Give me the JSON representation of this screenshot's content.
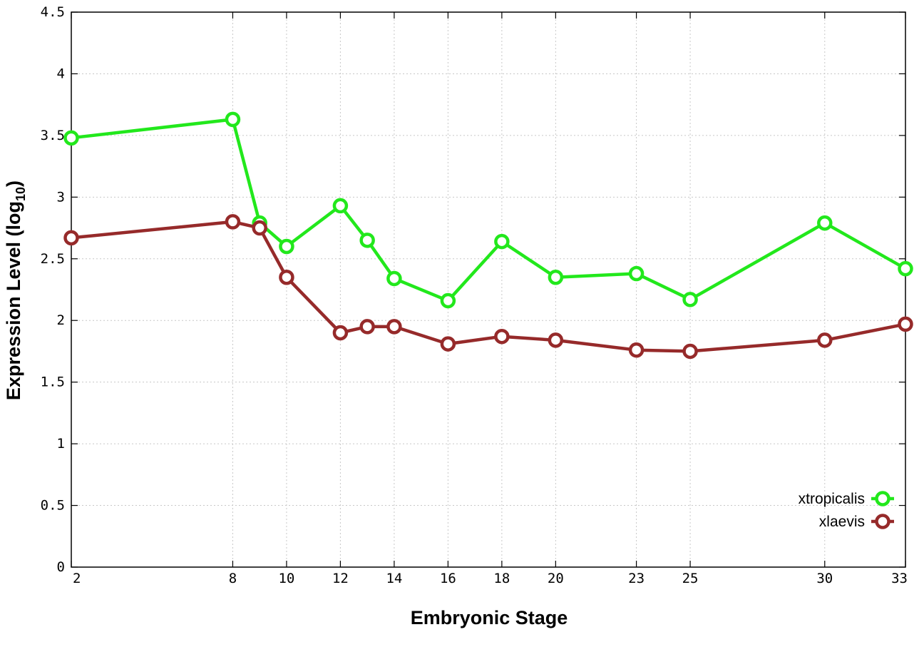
{
  "chart_data": {
    "type": "line",
    "xlabel": "Embryonic Stage",
    "ylabel": "Expression Level (log",
    "ylabel_sub": "10",
    "ylabel_close": ")",
    "x_ticks": [
      "2",
      "8",
      "10",
      "12",
      "14",
      "16",
      "18",
      "20",
      "23",
      "25",
      "30",
      "33"
    ],
    "y_ticks": [
      "0",
      "0.5",
      "1",
      "1.5",
      "2",
      "2.5",
      "3",
      "3.5",
      "4",
      "4.5"
    ],
    "ylim": [
      0,
      4.5
    ],
    "grid": true,
    "legend_position": "bottom-right",
    "categories": [
      "2",
      "8",
      "9",
      "10",
      "12",
      "13",
      "14",
      "16",
      "18",
      "20",
      "23",
      "25",
      "30",
      "33"
    ],
    "series": [
      {
        "name": "xtropicalis",
        "color": "#22e81c",
        "values": [
          3.48,
          3.63,
          2.79,
          2.6,
          2.93,
          2.65,
          2.34,
          2.16,
          2.64,
          2.35,
          2.38,
          2.17,
          2.79,
          2.42
        ]
      },
      {
        "name": "xlaevis",
        "color": "#962a2a",
        "values": [
          2.67,
          2.8,
          2.75,
          2.35,
          1.9,
          1.95,
          1.95,
          1.81,
          1.87,
          1.84,
          1.76,
          1.75,
          1.84,
          1.97
        ]
      }
    ]
  }
}
